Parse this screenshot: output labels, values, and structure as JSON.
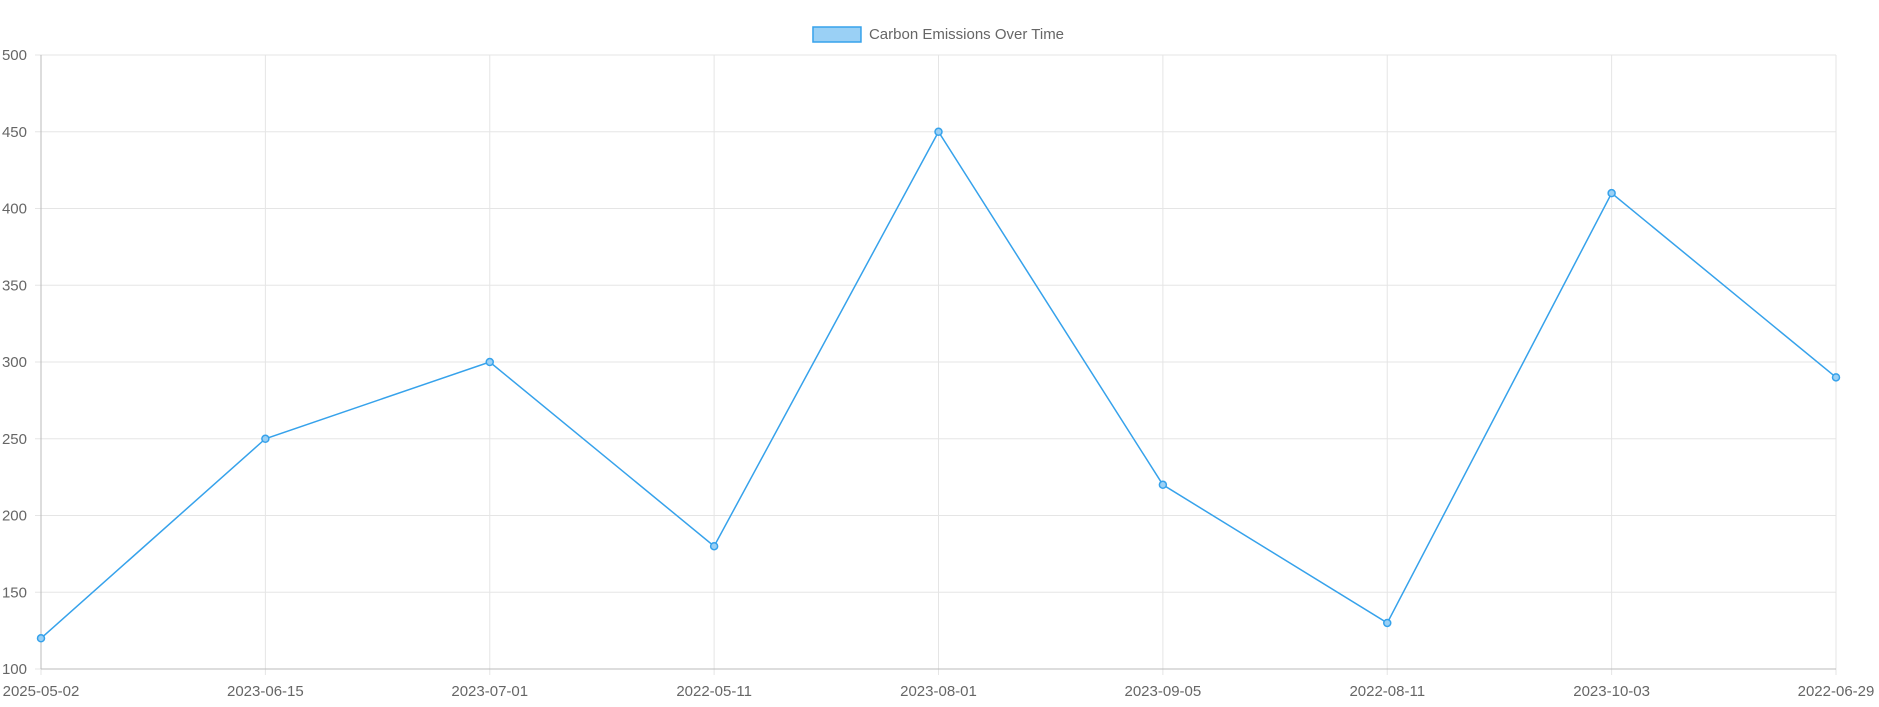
{
  "chart_data": {
    "type": "line",
    "categories": [
      "2025-05-02",
      "2023-06-15",
      "2023-07-01",
      "2022-05-11",
      "2023-08-01",
      "2023-09-05",
      "2022-08-11",
      "2023-10-03",
      "2022-06-29"
    ],
    "series": [
      {
        "name": "Carbon Emissions Over Time",
        "values": [
          120,
          250,
          300,
          180,
          450,
          220,
          130,
          410,
          290
        ],
        "color": "#36a2eb",
        "fill": "#9ad0f5"
      }
    ],
    "ylim": [
      100,
      500
    ],
    "yticks": [
      100,
      150,
      200,
      250,
      300,
      350,
      400,
      450,
      500
    ],
    "grid": true,
    "legend": "top-center",
    "colors": {
      "line": "#36a2eb",
      "point_fill": "#9ad0f5",
      "grid": "#e5e5e5",
      "axis": "#bbbbbb",
      "text": "#666666"
    }
  }
}
